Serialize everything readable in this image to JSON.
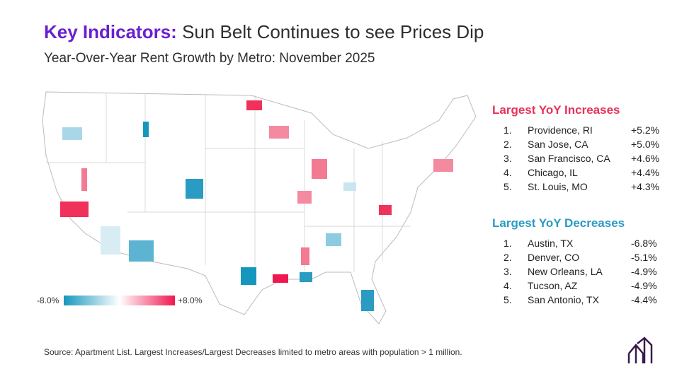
{
  "header": {
    "title_bold": "Key Indicators:",
    "title_rest": "Sun Belt Continues to see Prices Dip",
    "subtitle": "Year-Over-Year Rent Growth by Metro: November 2025"
  },
  "legend": {
    "min_label": "-8.0%",
    "max_label": "+8.0%"
  },
  "increases": {
    "heading": "Largest YoY Increases",
    "rows": [
      {
        "rank": "1.",
        "metro": "Providence, RI",
        "change": "+5.2%"
      },
      {
        "rank": "2.",
        "metro": "San Jose, CA",
        "change": "+5.0%"
      },
      {
        "rank": "3.",
        "metro": "San Francisco, CA",
        "change": "+4.6%"
      },
      {
        "rank": "4.",
        "metro": "Chicago, IL",
        "change": "+4.4%"
      },
      {
        "rank": "5.",
        "metro": "St. Louis, MO",
        "change": "+4.3%"
      }
    ]
  },
  "decreases": {
    "heading": "Largest YoY Decreases",
    "rows": [
      {
        "rank": "1.",
        "metro": "Austin, TX",
        "change": "-6.8%"
      },
      {
        "rank": "2.",
        "metro": "Denver, CO",
        "change": "-5.1%"
      },
      {
        "rank": "3.",
        "metro": "New Orleans, LA",
        "change": "-4.9%"
      },
      {
        "rank": "4.",
        "metro": "Tucson, AZ",
        "change": "-4.9%"
      },
      {
        "rank": "5.",
        "metro": "San Antonio, TX",
        "change": "-4.4%"
      }
    ]
  },
  "source": "Source: Apartment List. Largest Increases/Largest Decreases limited to metro areas with population > 1 million."
}
